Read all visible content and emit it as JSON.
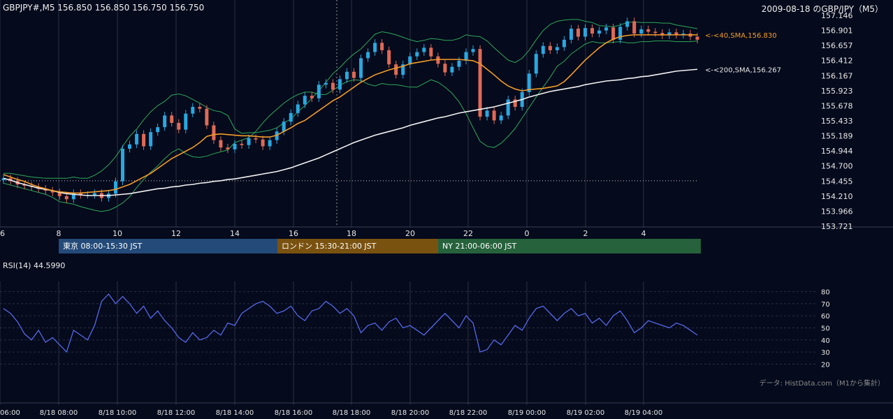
{
  "header": {
    "left": "GBPJPY#,M5 156.850 156.850 156.750 156.750",
    "right": "2009-08-18 のGBP/JPY（M5）"
  },
  "sessions": [
    {
      "label": "東京 08:00-15:30 JST",
      "color": "#234a78"
    },
    {
      "label": "ロンドン 15:30-21:00 JST",
      "color": "#7a5210"
    },
    {
      "label": "NY 21:00-06:00 JST",
      "color": "#26623c"
    }
  ],
  "rsi_label": "RSI(14) 44.5990",
  "credit": "データ: HistData.com（M1から集計）",
  "colors": {
    "background": "#050a1c",
    "candle_up": "#29a8e0",
    "candle_down": "#e06a55",
    "sma40": "#f39c28",
    "sma200": "#f2f2f2",
    "bollinger": "#2fa85a",
    "rsi": "#5468e8",
    "grid": "#2a3045"
  },
  "chart_data": [
    {
      "type": "candlestick",
      "price_axis_ticks": [
        "157.146",
        "156.901",
        "156.657",
        "156.412",
        "156.167",
        "155.923",
        "155.678",
        "155.433",
        "155.189",
        "154.944",
        "154.700",
        "154.455",
        "154.210",
        "153.966",
        "153.721"
      ],
      "ylim": [
        153.721,
        157.146
      ],
      "time_axis_ticks": [
        "6",
        "8",
        "10",
        "12",
        "14",
        "16",
        "18",
        "20",
        "22",
        "0",
        "2",
        "4"
      ],
      "reference_price": 154.46,
      "annotations": [
        {
          "text": "<-<40,SMA,156.830",
          "value": 156.83
        },
        {
          "text": "<-<200,SMA,156.267",
          "value": 156.267
        }
      ],
      "close": [
        154.5,
        154.46,
        154.4,
        154.38,
        154.36,
        154.33,
        154.3,
        154.27,
        154.21,
        154.16,
        154.26,
        154.23,
        154.23,
        154.26,
        154.18,
        154.25,
        154.45,
        154.98,
        155.05,
        155.22,
        155.02,
        155.25,
        155.33,
        155.52,
        155.4,
        155.29,
        155.55,
        155.66,
        155.63,
        155.36,
        155.12,
        155.0,
        154.97,
        155.06,
        155.04,
        155.15,
        155.13,
        155.02,
        155.12,
        155.26,
        155.42,
        155.56,
        155.7,
        155.84,
        155.8,
        156.02,
        156.05,
        155.94,
        156.11,
        156.23,
        156.13,
        156.45,
        156.55,
        156.7,
        156.58,
        156.35,
        156.18,
        156.35,
        156.48,
        156.55,
        156.62,
        156.48,
        156.36,
        156.22,
        156.31,
        156.41,
        156.55,
        156.6,
        155.5,
        155.6,
        155.44,
        155.52,
        155.78,
        155.66,
        155.9,
        156.2,
        156.52,
        156.65,
        156.58,
        156.63,
        156.75,
        156.93,
        156.8,
        156.94,
        156.85,
        156.9,
        156.95,
        156.75,
        156.96,
        157.05,
        156.85,
        156.92,
        156.88,
        156.86,
        156.82,
        156.87,
        156.83,
        156.85,
        156.8,
        156.75
      ],
      "sma40": [
        154.56,
        154.52,
        154.48,
        154.45,
        154.4,
        154.36,
        154.33,
        154.3,
        154.28,
        154.27,
        154.26,
        154.26,
        154.27,
        154.28,
        154.29,
        154.3,
        154.32,
        154.36,
        154.4,
        154.46,
        154.52,
        154.58,
        154.66,
        154.74,
        154.82,
        154.88,
        154.94,
        155.0,
        155.08,
        155.18,
        155.21,
        155.22,
        155.21,
        155.2,
        155.19,
        155.19,
        155.18,
        155.17,
        155.17,
        155.2,
        155.26,
        155.32,
        155.39,
        155.44,
        155.52,
        155.6,
        155.68,
        155.76,
        155.82,
        155.9,
        155.98,
        156.06,
        156.12,
        156.18,
        156.22,
        156.26,
        156.29,
        156.32,
        156.36,
        156.38,
        156.4,
        156.42,
        156.43,
        156.43,
        156.43,
        156.43,
        156.42,
        156.41,
        156.36,
        156.27,
        156.18,
        156.08,
        156.0,
        155.95,
        155.92,
        155.94,
        155.95,
        155.96,
        155.98,
        156.0,
        156.07,
        156.18,
        156.3,
        156.42,
        156.52,
        156.62,
        156.7,
        156.76,
        156.8,
        156.82,
        156.83,
        156.83,
        156.83,
        156.83,
        156.83,
        156.83,
        156.83,
        156.83,
        156.83,
        156.83
      ],
      "sma200": [
        154.5,
        154.47,
        154.43,
        154.4,
        154.37,
        154.34,
        154.32,
        154.3,
        154.27,
        154.25,
        154.24,
        154.23,
        154.22,
        154.22,
        154.22,
        154.22,
        154.23,
        154.24,
        154.25,
        154.27,
        154.29,
        154.31,
        154.33,
        154.34,
        154.36,
        154.37,
        154.39,
        154.4,
        154.42,
        154.43,
        154.45,
        154.46,
        154.48,
        154.49,
        154.51,
        154.53,
        154.55,
        154.57,
        154.59,
        154.61,
        154.64,
        154.67,
        154.71,
        154.75,
        154.79,
        154.83,
        154.88,
        154.93,
        154.98,
        155.03,
        155.08,
        155.12,
        155.16,
        155.2,
        155.23,
        155.26,
        155.29,
        155.32,
        155.36,
        155.39,
        155.42,
        155.45,
        155.48,
        155.5,
        155.53,
        155.56,
        155.58,
        155.6,
        155.62,
        155.64,
        155.66,
        155.69,
        155.72,
        155.75,
        155.78,
        155.82,
        155.85,
        155.88,
        155.91,
        155.93,
        155.95,
        155.97,
        155.99,
        156.02,
        156.04,
        156.06,
        156.08,
        156.09,
        156.1,
        156.12,
        156.13,
        156.15,
        156.16,
        156.18,
        156.2,
        156.22,
        156.24,
        156.25,
        156.26,
        156.27
      ],
      "bb_upper": [
        154.58,
        154.58,
        154.56,
        154.54,
        154.52,
        154.51,
        154.5,
        154.5,
        154.5,
        154.5,
        154.52,
        154.5,
        154.5,
        154.55,
        154.62,
        154.72,
        154.85,
        155.02,
        155.18,
        155.3,
        155.45,
        155.58,
        155.68,
        155.75,
        155.85,
        155.87,
        155.84,
        155.78,
        155.72,
        155.65,
        155.6,
        155.58,
        155.52,
        155.3,
        155.23,
        155.24,
        155.24,
        155.26,
        155.28,
        155.32,
        155.4,
        155.46,
        155.58,
        155.68,
        155.8,
        155.92,
        156.06,
        156.2,
        156.3,
        156.42,
        156.52,
        156.6,
        156.72,
        156.84,
        156.88,
        156.86,
        156.83,
        156.79,
        156.75,
        156.72,
        156.74,
        156.77,
        156.76,
        156.74,
        156.74,
        156.77,
        156.83,
        156.81,
        156.8,
        156.73,
        156.62,
        156.52,
        156.42,
        156.38,
        156.45,
        156.58,
        156.75,
        156.9,
        157.0,
        157.05,
        157.07,
        157.08,
        157.08,
        157.05,
        157.03,
        156.98,
        156.97,
        156.96,
        156.99,
        157.03,
        157.04,
        157.03,
        157.03,
        157.03,
        157.02,
        157.02,
        156.99,
        156.97,
        156.95,
        156.93
      ],
      "bb_lower": [
        154.42,
        154.39,
        154.36,
        154.33,
        154.3,
        154.27,
        154.24,
        154.19,
        154.12,
        154.1,
        154.08,
        154.04,
        154.01,
        153.98,
        153.96,
        153.98,
        154.03,
        154.1,
        154.2,
        154.35,
        154.48,
        154.6,
        154.7,
        154.82,
        154.92,
        154.98,
        154.9,
        154.85,
        154.84,
        154.86,
        154.9,
        154.93,
        154.96,
        155.08,
        155.12,
        155.16,
        155.26,
        155.4,
        155.52,
        155.62,
        155.72,
        155.8,
        155.86,
        155.9,
        155.9,
        155.86,
        155.86,
        155.93,
        156.01,
        156.07,
        156.1,
        156.09,
        156.03,
        156.0,
        156.04,
        156.02,
        156.02,
        156.0,
        155.98,
        155.98,
        156.04,
        156.1,
        156.06,
        155.98,
        155.88,
        155.74,
        155.55,
        155.32,
        155.1,
        155.02,
        155.0,
        155.07,
        155.18,
        155.31,
        155.48,
        155.65,
        155.82,
        155.98,
        156.14,
        156.32,
        156.4,
        156.52,
        156.6,
        156.68,
        156.72,
        156.7,
        156.7,
        156.71,
        156.72,
        156.7,
        156.7,
        156.72,
        156.72,
        156.73,
        156.73,
        156.73,
        156.72,
        156.72,
        156.72,
        156.73
      ]
    },
    {
      "type": "line",
      "title": "RSI(14) 44.5990",
      "y_ticks": [
        "80",
        "70",
        "60",
        "50",
        "40",
        "30",
        "20"
      ],
      "ylim": [
        15,
        85
      ],
      "values": [
        66,
        62,
        55,
        45,
        40,
        48,
        38,
        42,
        36,
        30,
        48,
        44,
        40,
        52,
        72,
        78,
        70,
        76,
        70,
        62,
        68,
        58,
        64,
        56,
        50,
        42,
        38,
        46,
        40,
        42,
        48,
        44,
        54,
        52,
        62,
        66,
        70,
        72,
        68,
        62,
        64,
        68,
        60,
        56,
        64,
        66,
        72,
        68,
        62,
        66,
        60,
        46,
        52,
        54,
        48,
        55,
        58,
        50,
        52,
        48,
        44,
        50,
        56,
        62,
        56,
        50,
        60,
        54,
        30,
        32,
        40,
        36,
        44,
        52,
        48,
        58,
        66,
        68,
        62,
        56,
        62,
        66,
        60,
        62,
        54,
        58,
        52,
        60,
        64,
        56,
        46,
        50,
        56,
        54,
        52,
        50,
        54,
        52,
        48,
        44
      ],
      "x_ticks": [
        "06:00",
        "8/18 08:00",
        "8/18 10:00",
        "8/18 12:00",
        "8/18 14:00",
        "8/18 16:00",
        "8/18 18:00",
        "8/18 20:00",
        "8/18 22:00",
        "8/19 00:00",
        "8/19 02:00",
        "8/19 04:00"
      ]
    }
  ]
}
